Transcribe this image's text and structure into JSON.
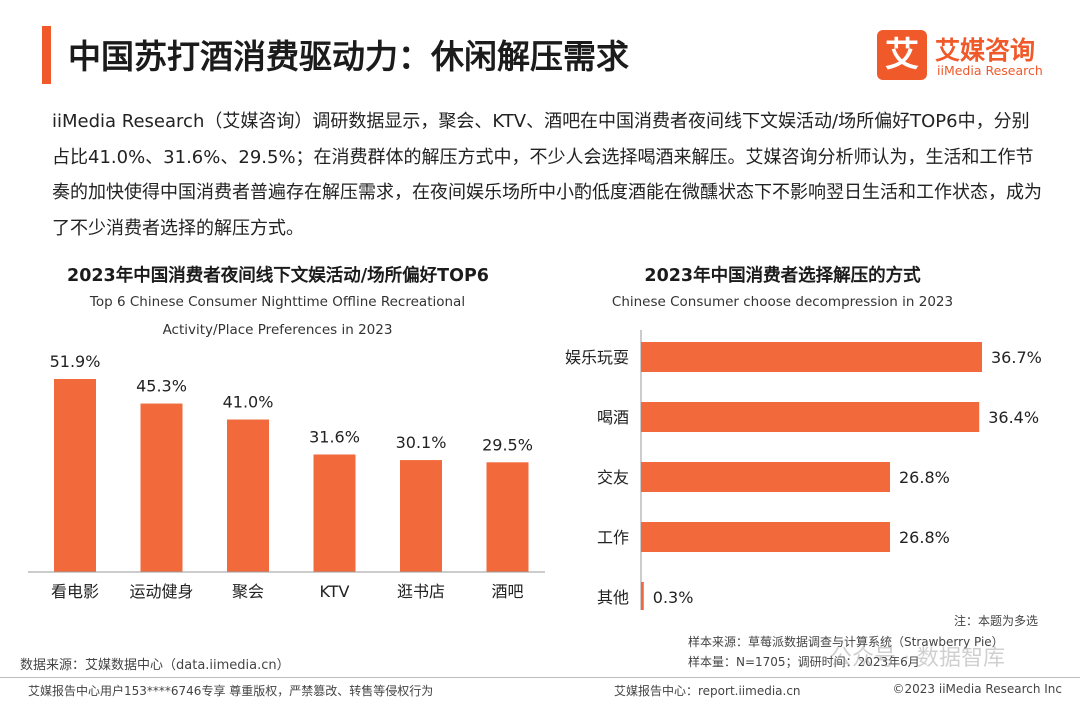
{
  "header": {
    "title": "中国苏打酒消费驱动力：休闲解压需求",
    "logo_mark": "艾",
    "logo_cn": "艾媒咨询",
    "logo_en": "iiMedia Research"
  },
  "intro": "iiMedia Research（艾媒咨询）调研数据显示，聚会、KTV、酒吧在中国消费者夜间线下文娱活动/场所偏好TOP6中，分别占比41.0%、31.6%、29.5%；在消费群体的解压方式中，不少人会选择喝酒来解压。艾媒咨询分析师认为，生活和工作节奏的加快使得中国消费者普遍存在解压需求，在夜间娱乐场所中小酌低度酒能在微醺状态下不影响翌日生活和工作状态，成为了不少消费者选择的解压方式。",
  "colors": {
    "accent": "#f0592a",
    "bar": "#f26a3c"
  },
  "chart_data": [
    {
      "type": "bar",
      "title": "2023年中国消费者夜间线下文娱活动/场所偏好TOP6",
      "subtitle": "Top 6 Chinese Consumer Nighttime Offline Recreational Activity/Place Preferences in 2023",
      "categories": [
        "看电影",
        "运动健身",
        "聚会",
        "KTV",
        "逛书店",
        "酒吧"
      ],
      "values": [
        51.9,
        45.3,
        41.0,
        31.6,
        30.1,
        29.5
      ],
      "labels": [
        "51.9%",
        "45.3%",
        "41.0%",
        "31.6%",
        "30.1%",
        "29.5%"
      ],
      "unit": "%",
      "ylim": [
        0,
        60
      ],
      "grid": false
    },
    {
      "type": "bar",
      "orientation": "horizontal",
      "title": "2023年中国消费者选择解压的方式",
      "subtitle": "Chinese Consumer choose decompression in 2023",
      "categories": [
        "娱乐玩耍",
        "喝酒",
        "交友",
        "工作",
        "其他"
      ],
      "values": [
        36.7,
        36.4,
        26.8,
        26.8,
        0.3
      ],
      "labels": [
        "36.7%",
        "36.4%",
        "26.8%",
        "26.8%",
        "0.3%"
      ],
      "unit": "%",
      "xlim": [
        0,
        40
      ],
      "grid": false
    }
  ],
  "notes": {
    "multi_choice": "注：本题为多选",
    "sample_source": "样本来源：草莓派数据调查与计算系统（Strawberry Pie）",
    "sample_size": "样本量：N=1705；调研时间：2023年6月",
    "watermark": "公众号 · 数据智库",
    "data_source": "数据来源：艾媒数据中心（data.iimedia.cn）"
  },
  "footer": {
    "left": "艾媒报告中心用户153****6746专享 尊重版权，严禁篡改、转售等侵权行为",
    "center": "艾媒报告中心：report.iimedia.cn",
    "right": "©2023  iiMedia Research  Inc"
  }
}
